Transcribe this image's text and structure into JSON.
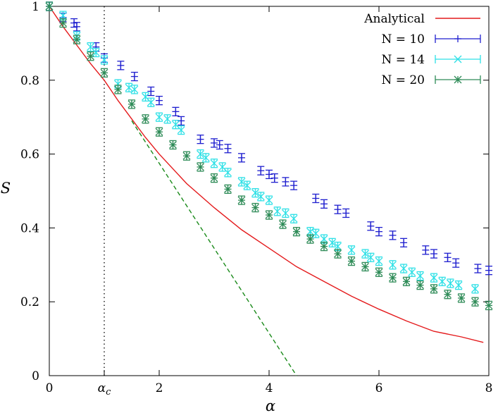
{
  "chart_data": {
    "type": "scatter",
    "title": "",
    "xlabel": "α",
    "ylabel": "S",
    "xlim": [
      0,
      8
    ],
    "ylim": [
      0,
      1
    ],
    "xticks": [
      0,
      2,
      4,
      6,
      8
    ],
    "yticks": [
      0,
      0.2,
      0.4,
      0.6,
      0.8,
      1
    ],
    "xtick_labels": [
      "0",
      "2",
      "4",
      "6",
      "8"
    ],
    "ytick_labels": [
      "0",
      "0.2",
      "0.4",
      "0.6",
      "0.8",
      "1"
    ],
    "grid": false,
    "legend_position": "top-right",
    "annotations": {
      "alpha_c_label": "α_c",
      "alpha_c_value": 1.0
    },
    "series": [
      {
        "name": "Analytical",
        "kind": "line",
        "color": "#e41a1c",
        "x": [
          0,
          0.25,
          0.5,
          0.75,
          1.0,
          1.25,
          1.5,
          1.75,
          2.0,
          2.5,
          3.0,
          3.5,
          4.0,
          4.5,
          5.0,
          5.5,
          6.0,
          6.5,
          7.0,
          7.5,
          7.9
        ],
        "y": [
          1.0,
          0.945,
          0.895,
          0.845,
          0.8,
          0.745,
          0.695,
          0.645,
          0.6,
          0.52,
          0.455,
          0.395,
          0.345,
          0.295,
          0.255,
          0.215,
          0.18,
          0.148,
          0.12,
          0.105,
          0.09
        ]
      },
      {
        "name": "tangent",
        "kind": "dashed-line",
        "color": "#1a8a1a",
        "x": [
          1.5,
          4.5
        ],
        "y": [
          0.69,
          0.0
        ]
      },
      {
        "name": "N = 10",
        "kind": "errorbar",
        "color": "#1f1fcf",
        "marker": "plus",
        "x": [
          0,
          0.25,
          0.45,
          0.5,
          0.85,
          1.0,
          1.3,
          1.55,
          1.85,
          2.0,
          2.3,
          2.4,
          2.75,
          3.0,
          3.1,
          3.25,
          3.5,
          3.85,
          4.0,
          4.1,
          4.3,
          4.45,
          4.85,
          5.0,
          5.25,
          5.4,
          5.85,
          6.0,
          6.25,
          6.45,
          6.85,
          7.0,
          7.25,
          7.4,
          7.8,
          8.0
        ],
        "y": [
          1.0,
          0.97,
          0.955,
          0.945,
          0.89,
          0.86,
          0.84,
          0.81,
          0.77,
          0.745,
          0.715,
          0.69,
          0.64,
          0.63,
          0.625,
          0.615,
          0.59,
          0.555,
          0.545,
          0.535,
          0.525,
          0.515,
          0.48,
          0.465,
          0.45,
          0.44,
          0.405,
          0.39,
          0.38,
          0.36,
          0.34,
          0.33,
          0.32,
          0.305,
          0.29,
          0.285
        ]
      },
      {
        "name": "N = 14",
        "kind": "errorbar",
        "color": "#2de0e6",
        "marker": "cross",
        "x": [
          0,
          0.25,
          0.5,
          0.75,
          0.85,
          1.0,
          1.25,
          1.45,
          1.55,
          1.75,
          1.85,
          2.0,
          2.15,
          2.3,
          2.4,
          2.75,
          2.85,
          3.0,
          3.15,
          3.25,
          3.5,
          3.6,
          3.75,
          3.85,
          4.0,
          4.15,
          4.3,
          4.45,
          4.75,
          4.85,
          5.0,
          5.15,
          5.25,
          5.5,
          5.75,
          5.85,
          6.0,
          6.25,
          6.45,
          6.6,
          6.75,
          7.0,
          7.15,
          7.3,
          7.45,
          7.75
        ],
        "y": [
          1.0,
          0.975,
          0.92,
          0.89,
          0.875,
          0.855,
          0.79,
          0.78,
          0.775,
          0.755,
          0.74,
          0.7,
          0.695,
          0.68,
          0.665,
          0.6,
          0.59,
          0.575,
          0.565,
          0.55,
          0.525,
          0.515,
          0.495,
          0.485,
          0.475,
          0.445,
          0.44,
          0.425,
          0.39,
          0.385,
          0.37,
          0.36,
          0.35,
          0.34,
          0.33,
          0.32,
          0.31,
          0.3,
          0.29,
          0.28,
          0.27,
          0.265,
          0.255,
          0.25,
          0.245,
          0.235
        ]
      },
      {
        "name": "N = 20",
        "kind": "errorbar",
        "color": "#2e8b57",
        "marker": "star",
        "x": [
          0,
          0.25,
          0.5,
          0.75,
          1.0,
          1.25,
          1.5,
          1.75,
          2.0,
          2.25,
          2.5,
          2.75,
          3.0,
          3.25,
          3.5,
          3.75,
          4.0,
          4.25,
          4.5,
          4.75,
          5.0,
          5.25,
          5.5,
          5.75,
          6.0,
          6.25,
          6.5,
          6.75,
          7.0,
          7.25,
          7.5,
          7.75,
          8.0
        ],
        "y": [
          1.0,
          0.955,
          0.91,
          0.865,
          0.82,
          0.775,
          0.735,
          0.695,
          0.66,
          0.625,
          0.595,
          0.565,
          0.535,
          0.505,
          0.475,
          0.455,
          0.435,
          0.41,
          0.39,
          0.37,
          0.35,
          0.33,
          0.31,
          0.295,
          0.28,
          0.265,
          0.255,
          0.245,
          0.235,
          0.22,
          0.21,
          0.2,
          0.19
        ]
      }
    ]
  }
}
